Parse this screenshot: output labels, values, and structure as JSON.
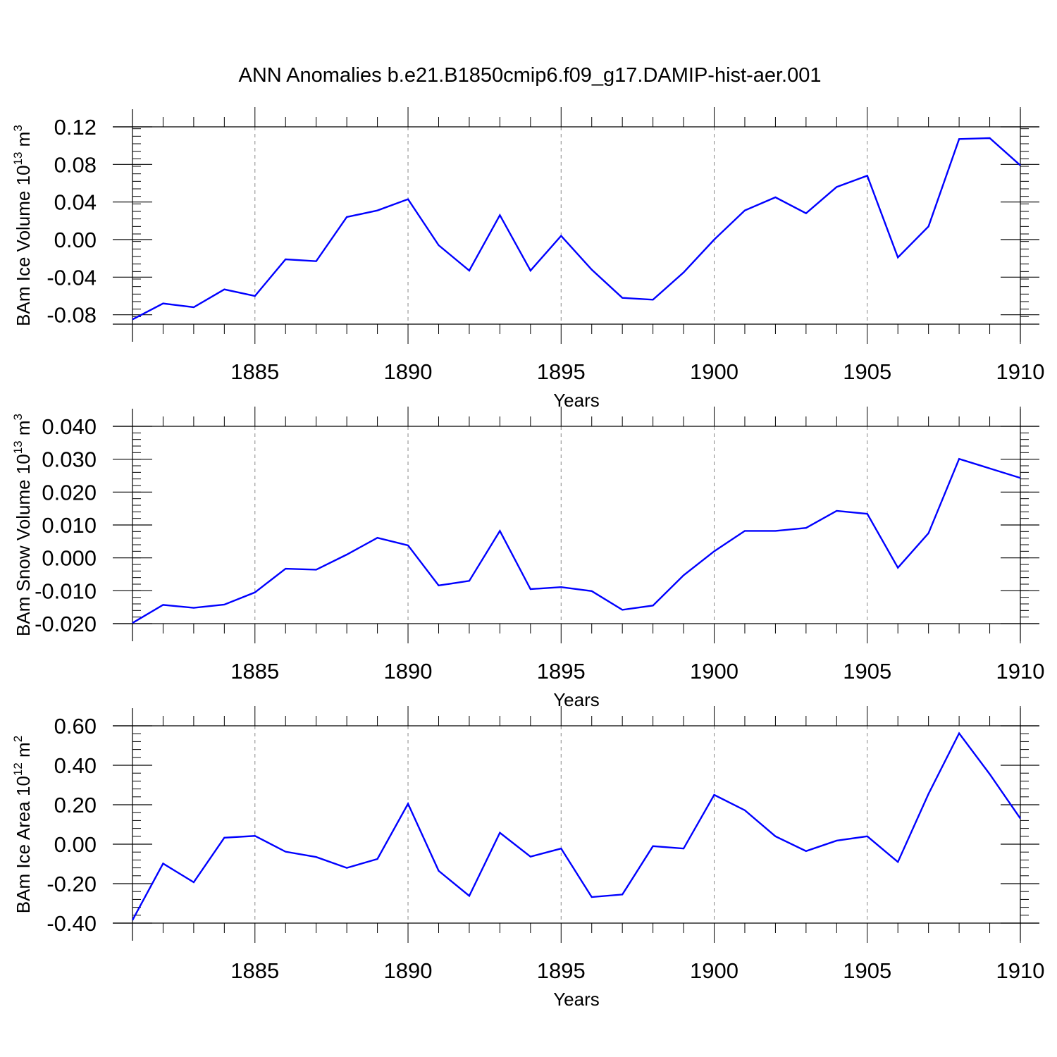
{
  "title": "ANN Anomalies b.e21.B1850cmip6.f09_g17.DAMIP-hist-aer.001",
  "colors": {
    "line": "#0000ff",
    "axis": "#000000",
    "grid": "#888888"
  },
  "chart_data": [
    {
      "type": "line",
      "ylabel": {
        "main": "BAm Ice Volume 10",
        "sup": "13",
        "unit": " m",
        "unit_sup": "3"
      },
      "xlabel": "Years",
      "xlim": [
        1881,
        1910
      ],
      "ylim": [
        -0.09,
        0.12
      ],
      "yticks": [
        0.12,
        0.08,
        0.04,
        0.0,
        -0.04,
        -0.08
      ],
      "ytick_labels": [
        "0.12",
        "0.08",
        "0.04",
        "0.00",
        "-0.04",
        "-0.08"
      ],
      "xticks": [
        1885,
        1890,
        1895,
        1900,
        1905,
        1910
      ],
      "xtick_labels": [
        "1885",
        "1890",
        "1895",
        "1900",
        "1905",
        "1910"
      ],
      "grid": "vertical dashed at major x ticks",
      "x": [
        1881,
        1882,
        1883,
        1884,
        1885,
        1886,
        1887,
        1888,
        1889,
        1890,
        1891,
        1892,
        1893,
        1894,
        1895,
        1896,
        1897,
        1898,
        1899,
        1900,
        1901,
        1902,
        1903,
        1904,
        1905,
        1906,
        1907,
        1908,
        1909,
        1910
      ],
      "values": [
        -0.085,
        -0.068,
        -0.072,
        -0.053,
        -0.06,
        -0.021,
        -0.023,
        0.024,
        0.031,
        0.043,
        -0.006,
        -0.033,
        0.026,
        -0.033,
        0.004,
        -0.032,
        -0.062,
        -0.064,
        -0.035,
        0.0,
        0.031,
        0.045,
        0.028,
        0.056,
        0.068,
        -0.019,
        0.014,
        0.107,
        0.108,
        0.079
      ]
    },
    {
      "type": "line",
      "ylabel": {
        "main": "BAm Snow Volume 10",
        "sup": "13",
        "unit": " m",
        "unit_sup": "3"
      },
      "xlabel": "Years",
      "xlim": [
        1881,
        1910
      ],
      "ylim": [
        -0.02,
        0.04
      ],
      "yticks": [
        0.04,
        0.03,
        0.02,
        0.01,
        0.0,
        -0.01,
        -0.02
      ],
      "ytick_labels": [
        "0.040",
        "0.030",
        "0.020",
        "0.010",
        "0.000",
        "-0.010",
        "-0.020"
      ],
      "xticks": [
        1885,
        1890,
        1895,
        1900,
        1905,
        1910
      ],
      "xtick_labels": [
        "1885",
        "1890",
        "1895",
        "1900",
        "1905",
        "1910"
      ],
      "grid": "vertical dashed at major x ticks",
      "x": [
        1881,
        1882,
        1883,
        1884,
        1885,
        1886,
        1887,
        1888,
        1889,
        1890,
        1891,
        1892,
        1893,
        1894,
        1895,
        1896,
        1897,
        1898,
        1899,
        1900,
        1901,
        1902,
        1903,
        1904,
        1905,
        1906,
        1907,
        1908,
        1909,
        1910
      ],
      "values": [
        -0.0198,
        -0.0143,
        -0.0152,
        -0.0142,
        -0.0105,
        -0.0033,
        -0.0036,
        0.001,
        0.0061,
        0.0038,
        -0.0084,
        -0.007,
        0.0082,
        -0.0095,
        -0.0089,
        -0.0101,
        -0.0158,
        -0.0145,
        -0.0053,
        0.002,
        0.0082,
        0.0082,
        0.0091,
        0.0143,
        0.0134,
        -0.003,
        0.0075,
        0.0301,
        0.0272,
        0.0243
      ]
    },
    {
      "type": "line",
      "ylabel": {
        "main": "BAm Ice Area 10",
        "sup": "12",
        "unit": " m",
        "unit_sup": "2"
      },
      "xlabel": "Years",
      "xlim": [
        1881,
        1910
      ],
      "ylim": [
        -0.4,
        0.6
      ],
      "yticks": [
        0.6,
        0.4,
        0.2,
        0.0,
        -0.2,
        -0.4
      ],
      "ytick_labels": [
        "0.60",
        "0.40",
        "0.20",
        "0.00",
        "-0.20",
        "-0.40"
      ],
      "xticks": [
        1885,
        1890,
        1895,
        1900,
        1905,
        1910
      ],
      "xtick_labels": [
        "1885",
        "1890",
        "1895",
        "1900",
        "1905",
        "1910"
      ],
      "grid": "vertical dashed at major x ticks",
      "x": [
        1881,
        1882,
        1883,
        1884,
        1885,
        1886,
        1887,
        1888,
        1889,
        1890,
        1891,
        1892,
        1893,
        1894,
        1895,
        1896,
        1897,
        1898,
        1899,
        1900,
        1901,
        1902,
        1903,
        1904,
        1905,
        1906,
        1907,
        1908,
        1909,
        1910
      ],
      "values": [
        -0.385,
        -0.098,
        -0.193,
        0.033,
        0.042,
        -0.038,
        -0.065,
        -0.12,
        -0.075,
        0.205,
        -0.135,
        -0.262,
        0.058,
        -0.063,
        -0.022,
        -0.268,
        -0.255,
        -0.01,
        -0.022,
        0.25,
        0.172,
        0.04,
        -0.035,
        0.018,
        0.04,
        -0.09,
        0.255,
        0.562,
        0.355,
        0.13
      ]
    }
  ]
}
